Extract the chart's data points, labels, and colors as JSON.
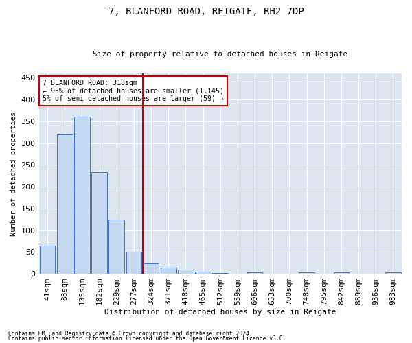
{
  "title1": "7, BLANFORD ROAD, REIGATE, RH2 7DP",
  "title2": "Size of property relative to detached houses in Reigate",
  "xlabel": "Distribution of detached houses by size in Reigate",
  "ylabel": "Number of detached properties",
  "footnote1": "Contains HM Land Registry data © Crown copyright and database right 2024.",
  "footnote2": "Contains public sector information licensed under the Open Government Licence v3.0.",
  "bar_labels": [
    "41sqm",
    "88sqm",
    "135sqm",
    "182sqm",
    "229sqm",
    "277sqm",
    "324sqm",
    "371sqm",
    "418sqm",
    "465sqm",
    "512sqm",
    "559sqm",
    "606sqm",
    "653sqm",
    "700sqm",
    "748sqm",
    "795sqm",
    "842sqm",
    "889sqm",
    "936sqm",
    "983sqm"
  ],
  "bar_values": [
    65,
    320,
    360,
    233,
    125,
    50,
    23,
    14,
    9,
    5,
    2,
    0,
    4,
    0,
    0,
    3,
    0,
    3,
    0,
    0,
    3
  ],
  "bar_color": "#c5d9f1",
  "bar_edge_color": "#4472c4",
  "bg_color": "#dce6f1",
  "grid_color": "#ffffff",
  "vline_color": "#c0000b",
  "annotation_text": "7 BLANFORD ROAD: 318sqm\n← 95% of detached houses are smaller (1,145)\n5% of semi-detached houses are larger (59) →",
  "annotation_box_color": "#c0000b",
  "ylim": [
    0,
    460
  ],
  "yticks": [
    0,
    50,
    100,
    150,
    200,
    250,
    300,
    350,
    400,
    450
  ]
}
